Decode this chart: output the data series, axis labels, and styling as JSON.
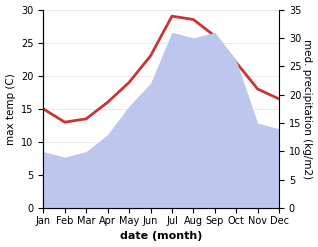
{
  "months": [
    "Jan",
    "Feb",
    "Mar",
    "Apr",
    "May",
    "Jun",
    "Jul",
    "Aug",
    "Sep",
    "Oct",
    "Nov",
    "Dec"
  ],
  "x": [
    1,
    2,
    3,
    4,
    5,
    6,
    7,
    8,
    9,
    10,
    11,
    12
  ],
  "temperature": [
    15,
    13,
    13.5,
    16,
    19,
    23,
    29,
    28.5,
    26,
    22,
    18,
    16.5
  ],
  "precipitation": [
    10,
    9,
    10,
    13,
    18,
    22,
    31,
    30,
    31,
    26,
    15,
    14
  ],
  "temp_color": "#cc3333",
  "precip_fill_color": "#bdc7ee",
  "background": "#ffffff",
  "xlabel": "date (month)",
  "ylabel_left": "max temp (C)",
  "ylabel_right": "med. precipitation (kg/m2)",
  "ylim_left": [
    0,
    30
  ],
  "ylim_right": [
    0,
    35
  ],
  "yticks_left": [
    0,
    5,
    10,
    15,
    20,
    25,
    30
  ],
  "yticks_right": [
    0,
    5,
    10,
    15,
    20,
    25,
    30,
    35
  ],
  "line_width": 2.0,
  "font_size_label": 7.5,
  "font_size_xlabel": 8,
  "font_size_tick": 7
}
